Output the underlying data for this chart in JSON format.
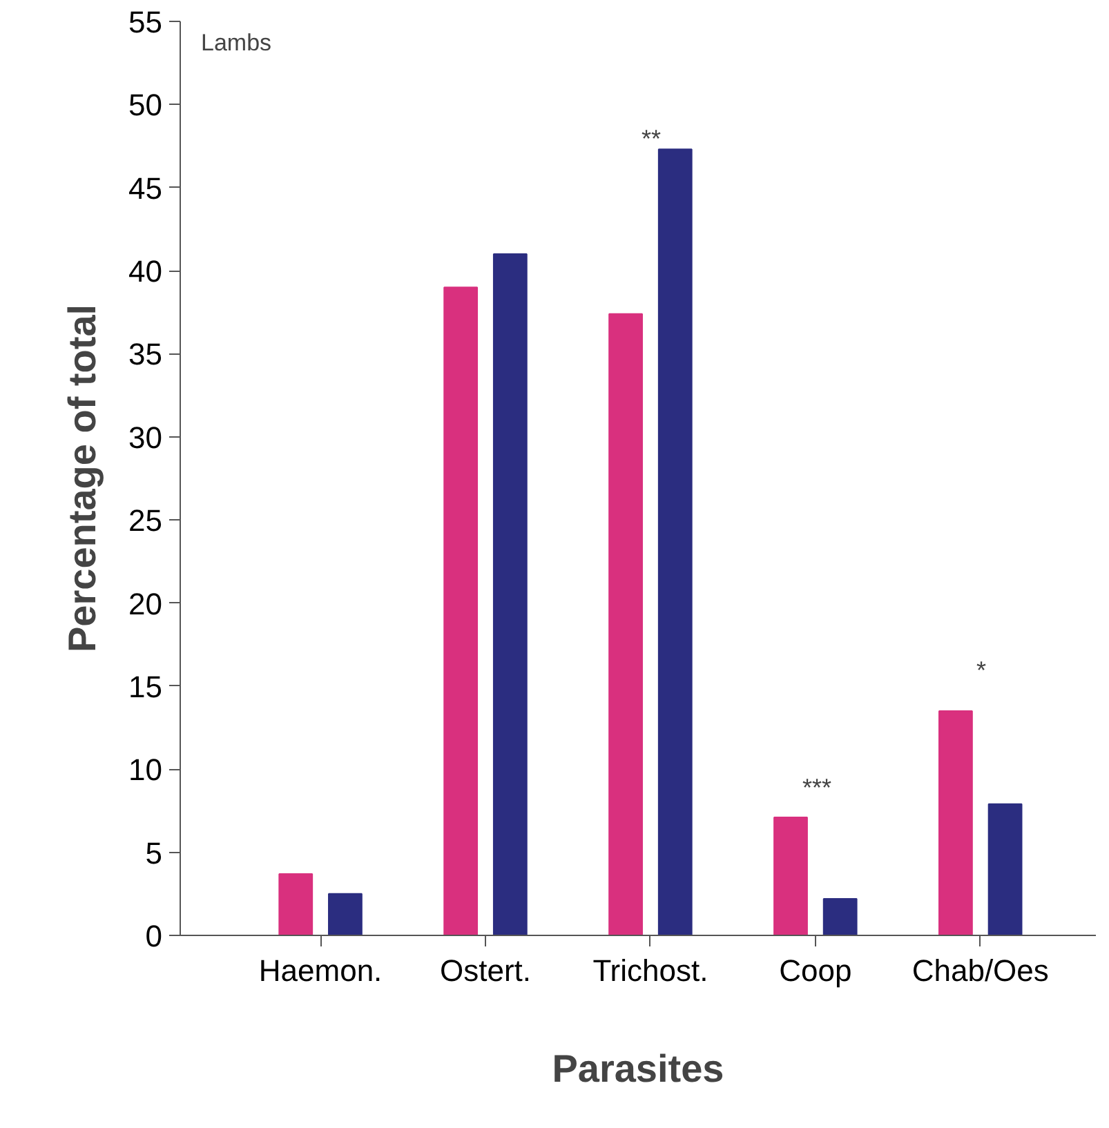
{
  "chart_data": {
    "type": "bar",
    "xlabel": "Parasites",
    "ylabel": "Percentage of total",
    "categories": [
      "Haemon.",
      "Ostert.",
      "Trichost.",
      "Coop",
      "Chab/Oes"
    ],
    "series": [
      {
        "color": "#d9307e",
        "values": [
          3.7,
          39.0,
          37.4,
          7.1,
          13.5
        ]
      },
      {
        "color": "#2b2d80",
        "values": [
          2.5,
          41.0,
          47.3,
          2.2,
          7.9
        ]
      }
    ],
    "ylim": [
      0,
      55
    ],
    "yticks": [
      0,
      5,
      10,
      15,
      20,
      25,
      30,
      35,
      40,
      45,
      50,
      55
    ],
    "grid": false,
    "annotations": [
      "Lambs",
      "**",
      "***",
      "*"
    ]
  }
}
